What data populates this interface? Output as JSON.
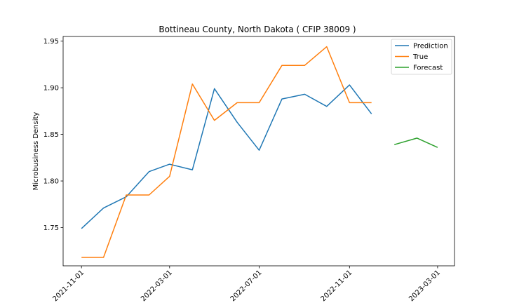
{
  "chart_data": {
    "type": "line",
    "title": "Bottineau County, North Dakota ( CFIP 38009 )",
    "xlabel": "",
    "ylabel": "Microbusiness Density",
    "x_tick_labels": [
      "2021-11-01",
      "2022-03-01",
      "2022-07-01",
      "2022-11-01",
      "2023-03-01"
    ],
    "x_ticks": [
      "2021-11-01",
      "2022-03-01",
      "2022-07-01",
      "2022-11-01",
      "2023-03-01"
    ],
    "y_ticks": [
      1.75,
      1.8,
      1.85,
      1.9,
      1.95
    ],
    "y_tick_labels": [
      "1.75",
      "1.80",
      "1.85",
      "1.90",
      "1.95"
    ],
    "xlim": [
      "2021-10-07",
      "2023-03-24"
    ],
    "ylim": [
      1.709,
      1.955
    ],
    "legend_position": "top-right",
    "grid": false,
    "series": [
      {
        "name": "Prediction",
        "color": "#1f77b4",
        "x": [
          "2021-11-01",
          "2021-12-01",
          "2022-01-01",
          "2022-02-01",
          "2022-03-01",
          "2022-04-01",
          "2022-05-01",
          "2022-06-01",
          "2022-07-01",
          "2022-08-01",
          "2022-09-01",
          "2022-10-01",
          "2022-11-01",
          "2022-12-01"
        ],
        "y": [
          1.749,
          1.771,
          1.783,
          1.81,
          1.818,
          1.812,
          1.899,
          1.863,
          1.833,
          1.888,
          1.893,
          1.88,
          1.903,
          1.872
        ]
      },
      {
        "name": "True",
        "color": "#ff7f0e",
        "x": [
          "2021-11-01",
          "2021-12-01",
          "2022-01-01",
          "2022-02-01",
          "2022-03-01",
          "2022-04-01",
          "2022-05-01",
          "2022-06-01",
          "2022-07-01",
          "2022-08-01",
          "2022-09-01",
          "2022-10-01",
          "2022-11-01",
          "2022-12-01"
        ],
        "y": [
          1.718,
          1.718,
          1.785,
          1.785,
          1.805,
          1.904,
          1.865,
          1.884,
          1.884,
          1.924,
          1.924,
          1.944,
          1.884,
          1.884
        ]
      },
      {
        "name": "Forecast",
        "color": "#2ca02c",
        "x": [
          "2023-01-01",
          "2023-02-01",
          "2023-03-01"
        ],
        "y": [
          1.839,
          1.846,
          1.836
        ]
      }
    ]
  }
}
